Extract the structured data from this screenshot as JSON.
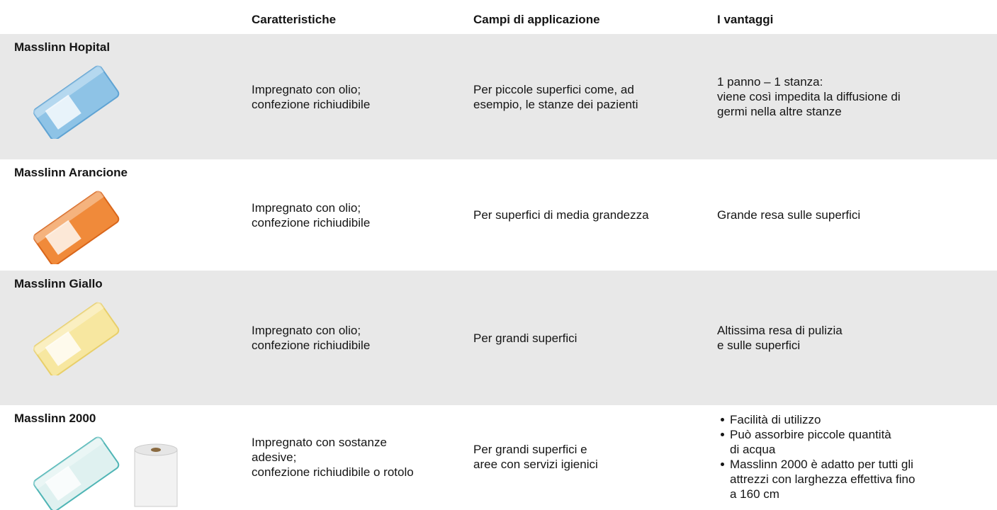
{
  "header": {
    "columns": [
      "Caratteristiche",
      "Campi di applicazione",
      "I vantaggi"
    ]
  },
  "rows": [
    {
      "name": "Masslinn Hopital",
      "features": [
        "Impregnato con olio;",
        "confezione richiudibile"
      ],
      "applications": [
        "Per piccole superfici come, ad",
        "esempio, le stanze dei pazienti"
      ],
      "advantages": [
        "1 panno – 1 stanza:",
        "viene così impedita la diffusione di",
        "germi nella altre stanze"
      ]
    },
    {
      "name": "Masslinn Arancione",
      "features": [
        "Impregnato con olio;",
        "confezione richiudibile"
      ],
      "applications": [
        "Per superfici di media grandezza"
      ],
      "advantages": [
        "Grande resa sulle superfici"
      ]
    },
    {
      "name": "Masslinn Giallo",
      "features": [
        "Impregnato con olio;",
        "confezione richiudibile"
      ],
      "applications": [
        "Per grandi superfici"
      ],
      "advantages": [
        "Altissima resa di pulizia",
        "e sulle superfici"
      ]
    },
    {
      "name": "Masslinn 2000",
      "features": [
        "Impregnato con sostanze",
        "adesive;",
        "confezione richiudibile o rotolo"
      ],
      "applications": [
        "Per grandi superfici e",
        "aree con servizi igienici"
      ],
      "bullets": [
        [
          "Facilità di utilizzo"
        ],
        [
          "Può assorbire piccole quantità",
          "di acqua"
        ],
        [
          "Masslinn 2000 è adatto per tutti gli",
          "attrezzi con larghezza effettiva fino",
          "a 160 cm"
        ]
      ]
    }
  ]
}
